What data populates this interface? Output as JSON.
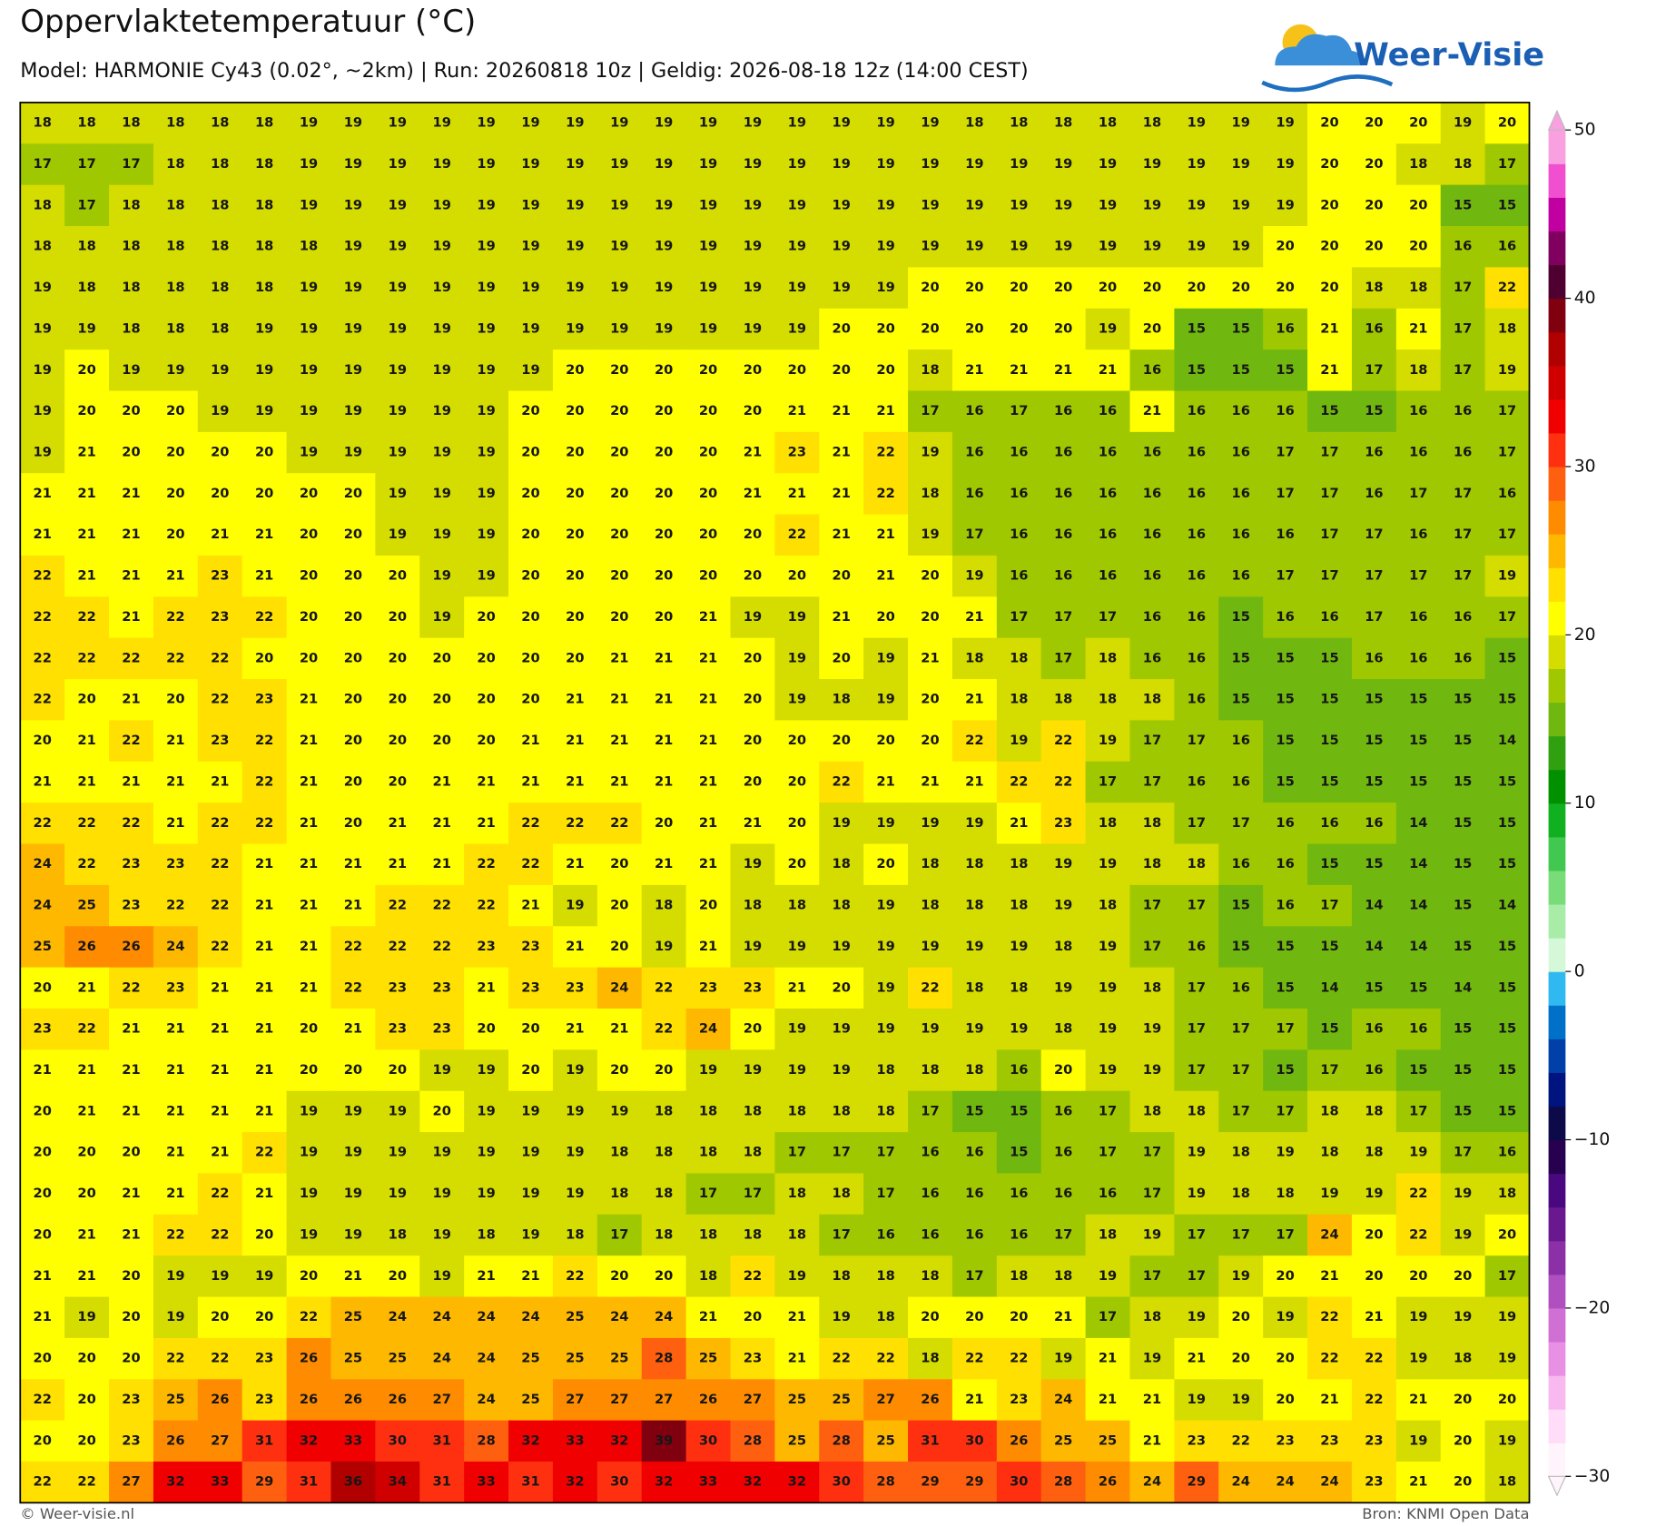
{
  "header": {
    "title": "Oppervlaktetemperatuur (°C)",
    "subtitle": "Model: HARMONIE Cy43 (0.02°, ~2km)  |  Run: 20260818 10z  |  Geldig: 2026-08-18 12z (14:00 CEST)",
    "logo": "Weer-Visie"
  },
  "map": {
    "grid": [
      [
        18,
        18,
        18,
        18,
        18,
        18,
        19,
        19,
        19,
        19,
        19,
        19,
        19,
        19,
        19,
        19,
        19,
        19,
        19,
        19,
        19,
        18,
        18,
        18,
        18,
        18,
        19,
        19,
        19,
        20,
        20,
        20,
        19,
        20
      ],
      [
        17,
        17,
        17,
        18,
        18,
        18,
        19,
        19,
        19,
        19,
        19,
        19,
        19,
        19,
        19,
        19,
        19,
        19,
        19,
        19,
        19,
        19,
        19,
        19,
        19,
        19,
        19,
        19,
        19,
        20,
        20,
        18,
        18,
        17
      ],
      [
        18,
        17,
        18,
        18,
        18,
        18,
        19,
        19,
        19,
        19,
        19,
        19,
        19,
        19,
        19,
        19,
        19,
        19,
        19,
        19,
        19,
        19,
        19,
        19,
        19,
        19,
        19,
        19,
        19,
        20,
        20,
        20,
        15,
        15
      ],
      [
        18,
        18,
        18,
        18,
        18,
        18,
        18,
        19,
        19,
        19,
        19,
        19,
        19,
        19,
        19,
        19,
        19,
        19,
        19,
        19,
        19,
        19,
        19,
        19,
        19,
        19,
        19,
        19,
        20,
        20,
        20,
        20,
        16,
        16
      ],
      [
        19,
        18,
        18,
        18,
        18,
        18,
        19,
        19,
        19,
        19,
        19,
        19,
        19,
        19,
        19,
        19,
        19,
        19,
        19,
        19,
        20,
        20,
        20,
        20,
        20,
        20,
        20,
        20,
        20,
        20,
        18,
        18,
        17,
        22
      ],
      [
        19,
        19,
        18,
        18,
        18,
        19,
        19,
        19,
        19,
        19,
        19,
        19,
        19,
        19,
        19,
        19,
        19,
        19,
        20,
        20,
        20,
        20,
        20,
        20,
        19,
        20,
        15,
        15,
        16,
        21,
        16,
        21,
        17,
        18
      ],
      [
        19,
        20,
        19,
        19,
        19,
        19,
        19,
        19,
        19,
        19,
        19,
        19,
        20,
        20,
        20,
        20,
        20,
        20,
        20,
        20,
        18,
        21,
        21,
        21,
        21,
        16,
        15,
        15,
        15,
        21,
        17,
        18,
        17,
        19
      ],
      [
        19,
        20,
        20,
        20,
        19,
        19,
        19,
        19,
        19,
        19,
        19,
        20,
        20,
        20,
        20,
        20,
        20,
        21,
        21,
        21,
        17,
        16,
        17,
        16,
        16,
        21,
        16,
        16,
        16,
        15,
        15,
        16,
        16,
        17
      ],
      [
        19,
        21,
        20,
        20,
        20,
        20,
        19,
        19,
        19,
        19,
        19,
        20,
        20,
        20,
        20,
        20,
        21,
        23,
        21,
        22,
        19,
        16,
        16,
        16,
        16,
        16,
        16,
        16,
        17,
        17,
        16,
        16,
        16,
        17
      ],
      [
        21,
        21,
        21,
        20,
        20,
        20,
        20,
        20,
        19,
        19,
        19,
        20,
        20,
        20,
        20,
        20,
        21,
        21,
        21,
        22,
        18,
        16,
        16,
        16,
        16,
        16,
        16,
        16,
        17,
        17,
        16,
        17,
        17,
        16
      ],
      [
        21,
        21,
        21,
        20,
        21,
        21,
        20,
        20,
        19,
        19,
        19,
        20,
        20,
        20,
        20,
        20,
        20,
        22,
        21,
        21,
        19,
        17,
        16,
        16,
        16,
        16,
        16,
        16,
        16,
        17,
        17,
        16,
        17,
        17
      ],
      [
        22,
        21,
        21,
        21,
        23,
        21,
        20,
        20,
        20,
        19,
        19,
        20,
        20,
        20,
        20,
        20,
        20,
        20,
        20,
        21,
        20,
        19,
        16,
        16,
        16,
        16,
        16,
        16,
        17,
        17,
        17,
        17,
        17,
        19
      ],
      [
        22,
        22,
        21,
        22,
        23,
        22,
        20,
        20,
        20,
        19,
        20,
        20,
        20,
        20,
        20,
        21,
        19,
        19,
        21,
        20,
        20,
        21,
        17,
        17,
        17,
        16,
        16,
        15,
        16,
        16,
        17,
        16,
        16,
        17
      ],
      [
        22,
        22,
        22,
        22,
        22,
        20,
        20,
        20,
        20,
        20,
        20,
        20,
        20,
        21,
        21,
        21,
        20,
        19,
        20,
        19,
        21,
        18,
        18,
        17,
        18,
        16,
        16,
        15,
        15,
        15,
        16,
        16,
        16,
        15
      ],
      [
        22,
        20,
        21,
        20,
        22,
        23,
        21,
        20,
        20,
        20,
        20,
        20,
        21,
        21,
        21,
        21,
        20,
        19,
        18,
        19,
        20,
        21,
        18,
        18,
        18,
        18,
        16,
        15,
        15,
        15,
        15,
        15,
        15,
        15
      ],
      [
        20,
        21,
        22,
        21,
        23,
        22,
        21,
        20,
        20,
        20,
        20,
        21,
        21,
        21,
        21,
        21,
        20,
        20,
        20,
        20,
        20,
        22,
        19,
        22,
        19,
        17,
        17,
        16,
        15,
        15,
        15,
        15,
        15,
        14
      ],
      [
        21,
        21,
        21,
        21,
        21,
        22,
        21,
        20,
        20,
        21,
        21,
        21,
        21,
        21,
        21,
        21,
        20,
        20,
        22,
        21,
        21,
        21,
        22,
        22,
        17,
        17,
        16,
        16,
        15,
        15,
        15,
        15,
        15,
        15
      ],
      [
        22,
        22,
        22,
        21,
        22,
        22,
        21,
        20,
        21,
        21,
        21,
        22,
        22,
        22,
        20,
        21,
        21,
        20,
        19,
        19,
        19,
        19,
        21,
        23,
        18,
        18,
        17,
        17,
        16,
        16,
        16,
        14,
        15,
        15
      ],
      [
        24,
        22,
        23,
        23,
        22,
        21,
        21,
        21,
        21,
        21,
        22,
        22,
        21,
        20,
        21,
        21,
        19,
        20,
        18,
        20,
        18,
        18,
        18,
        19,
        19,
        18,
        18,
        16,
        16,
        15,
        15,
        14,
        15,
        15
      ],
      [
        24,
        25,
        23,
        22,
        22,
        21,
        21,
        21,
        22,
        22,
        22,
        21,
        19,
        20,
        18,
        20,
        18,
        18,
        18,
        19,
        18,
        18,
        18,
        19,
        18,
        17,
        17,
        15,
        16,
        17,
        14,
        14,
        15,
        14
      ],
      [
        25,
        26,
        26,
        24,
        22,
        21,
        21,
        22,
        22,
        22,
        23,
        23,
        21,
        20,
        19,
        21,
        19,
        19,
        19,
        19,
        19,
        19,
        19,
        18,
        19,
        17,
        16,
        15,
        15,
        15,
        14,
        14,
        15,
        15
      ],
      [
        20,
        21,
        22,
        23,
        21,
        21,
        21,
        22,
        23,
        23,
        21,
        23,
        23,
        24,
        22,
        23,
        23,
        21,
        20,
        19,
        22,
        18,
        18,
        19,
        19,
        18,
        17,
        16,
        15,
        14,
        15,
        15,
        14,
        15
      ],
      [
        23,
        22,
        21,
        21,
        21,
        21,
        20,
        21,
        23,
        23,
        20,
        20,
        21,
        21,
        22,
        24,
        20,
        19,
        19,
        19,
        19,
        19,
        19,
        18,
        19,
        19,
        17,
        17,
        17,
        15,
        16,
        16,
        15,
        15
      ],
      [
        21,
        21,
        21,
        21,
        21,
        21,
        20,
        20,
        20,
        19,
        19,
        20,
        19,
        20,
        20,
        19,
        19,
        19,
        19,
        18,
        18,
        18,
        16,
        20,
        19,
        19,
        17,
        17,
        15,
        17,
        16,
        15,
        15,
        15
      ],
      [
        20,
        21,
        21,
        21,
        21,
        21,
        19,
        19,
        19,
        20,
        19,
        19,
        19,
        19,
        18,
        18,
        18,
        18,
        18,
        18,
        17,
        15,
        15,
        16,
        17,
        18,
        18,
        17,
        17,
        18,
        18,
        17,
        15,
        15
      ],
      [
        20,
        20,
        20,
        21,
        21,
        22,
        19,
        19,
        19,
        19,
        19,
        19,
        19,
        18,
        18,
        18,
        18,
        17,
        17,
        17,
        16,
        16,
        15,
        16,
        17,
        17,
        19,
        18,
        19,
        18,
        18,
        19,
        17,
        16
      ],
      [
        20,
        20,
        21,
        21,
        22,
        21,
        19,
        19,
        19,
        19,
        19,
        19,
        19,
        18,
        18,
        17,
        17,
        18,
        18,
        17,
        16,
        16,
        16,
        16,
        16,
        17,
        19,
        18,
        18,
        19,
        19,
        22,
        19,
        18
      ],
      [
        20,
        21,
        21,
        22,
        22,
        20,
        19,
        19,
        18,
        19,
        18,
        19,
        18,
        17,
        18,
        18,
        18,
        18,
        17,
        16,
        16,
        16,
        16,
        17,
        18,
        19,
        17,
        17,
        17,
        24,
        20,
        22,
        19,
        20
      ],
      [
        21,
        21,
        20,
        19,
        19,
        19,
        20,
        21,
        20,
        19,
        21,
        21,
        22,
        20,
        20,
        18,
        22,
        19,
        18,
        18,
        18,
        17,
        18,
        18,
        19,
        17,
        17,
        19,
        20,
        21,
        20,
        20,
        20,
        17
      ],
      [
        21,
        19,
        20,
        19,
        20,
        20,
        22,
        25,
        24,
        24,
        24,
        24,
        25,
        24,
        24,
        21,
        20,
        21,
        19,
        18,
        20,
        20,
        20,
        21,
        17,
        18,
        19,
        20,
        19,
        22,
        21,
        19,
        19,
        19
      ],
      [
        20,
        20,
        20,
        22,
        22,
        23,
        26,
        25,
        25,
        24,
        24,
        25,
        25,
        25,
        28,
        25,
        23,
        21,
        22,
        22,
        18,
        22,
        22,
        19,
        21,
        19,
        21,
        20,
        20,
        22,
        22,
        19,
        18,
        19
      ],
      [
        22,
        20,
        23,
        25,
        26,
        23,
        26,
        26,
        26,
        27,
        24,
        25,
        27,
        27,
        27,
        26,
        27,
        25,
        25,
        27,
        26,
        21,
        23,
        24,
        21,
        21,
        19,
        19,
        20,
        21,
        22,
        21,
        20,
        20
      ],
      [
        20,
        20,
        23,
        26,
        27,
        31,
        32,
        33,
        30,
        31,
        28,
        32,
        33,
        32,
        39,
        30,
        28,
        25,
        28,
        25,
        31,
        30,
        26,
        25,
        25,
        21,
        23,
        22,
        23,
        23,
        23,
        19,
        20,
        19
      ],
      [
        22,
        22,
        27,
        32,
        33,
        29,
        31,
        36,
        34,
        31,
        33,
        31,
        32,
        30,
        32,
        33,
        32,
        32,
        30,
        28,
        29,
        29,
        30,
        28,
        26,
        24,
        29,
        24,
        24,
        24,
        23,
        21,
        20,
        18
      ]
    ],
    "colorbar": {
      "lim": [
        -30,
        50
      ],
      "ticks": [
        50,
        40,
        30,
        20,
        10,
        0,
        {
          "value": -10,
          "label": "−10"
        },
        {
          "value": -20,
          "label": "−20"
        },
        {
          "value": -30,
          "label": "−30"
        }
      ],
      "colors": [
        "#fff4fc",
        "#ffdcf8",
        "#f8b8f0",
        "#e890e4",
        "#d070d4",
        "#b050c0",
        "#8c30a8",
        "#6a1890",
        "#4a0880",
        "#280050",
        "#0c0a48",
        "#001480",
        "#0040a8",
        "#0070c8",
        "#30b8f0",
        "#d4f8d8",
        "#a8eca8",
        "#78dc78",
        "#40c850",
        "#10b020",
        "#009000",
        "#30a010",
        "#70b810",
        "#a0c800",
        "#d4dc00",
        "#ffff00",
        "#ffe000",
        "#ffb800",
        "#ff8c00",
        "#ff6010",
        "#ff3010",
        "#f00000",
        "#d00000",
        "#b00000",
        "#800010",
        "#500030",
        "#800060",
        "#c000a0",
        "#f050d0",
        "#f8a0e0"
      ]
    }
  },
  "footer": {
    "left": "© Weer-visie.nl",
    "right": "Bron: KNMI Open Data"
  }
}
